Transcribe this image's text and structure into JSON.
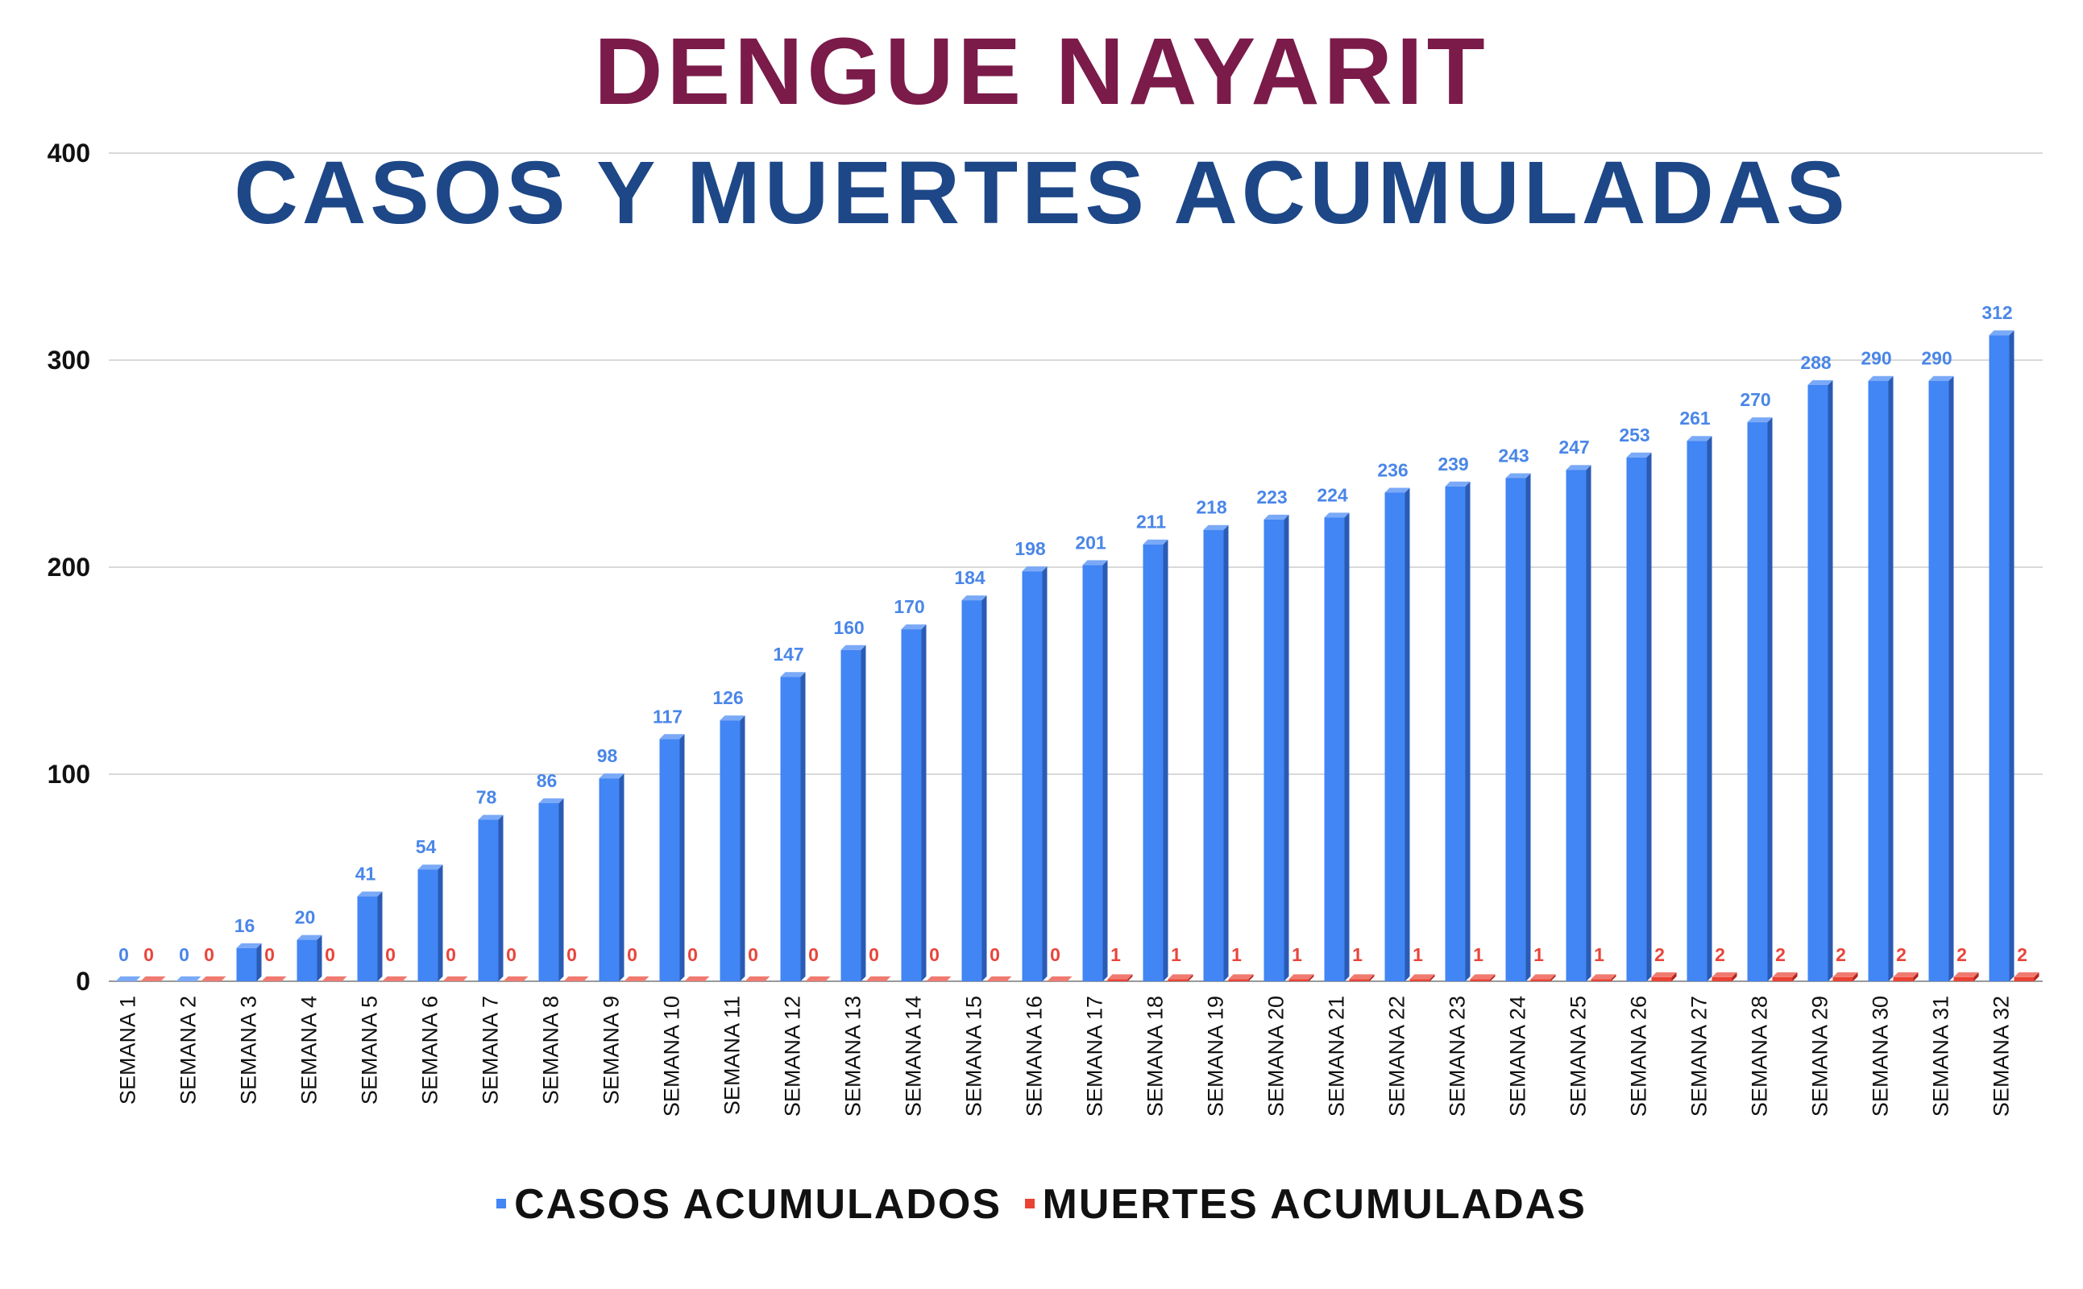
{
  "chart_data": {
    "type": "bar",
    "title": "DENGUE NAYARIT",
    "subtitle": "CASOS Y MUERTES ACUMULADAS",
    "categories": [
      "SEMANA 1",
      "SEMANA 2",
      "SEMANA 3",
      "SEMANA 4",
      "SEMANA 5",
      "SEMANA 6",
      "SEMANA 7",
      "SEMANA 8",
      "SEMANA 9",
      "SEMANA 10",
      "SEMANA 11",
      "SEMANA 12",
      "SEMANA 13",
      "SEMANA 14",
      "SEMANA 15",
      "SEMANA 16",
      "SEMANA 17",
      "SEMANA 18",
      "SEMANA 19",
      "SEMANA 20",
      "SEMANA 21",
      "SEMANA 22",
      "SEMANA 23",
      "SEMANA 24",
      "SEMANA 25",
      "SEMANA 26",
      "SEMANA 27",
      "SEMANA 28",
      "SEMANA 29",
      "SEMANA 30",
      "SEMANA 31",
      "SEMANA 32"
    ],
    "series": [
      {
        "name": "CASOS ACUMULADOS",
        "color": "#4285f4",
        "values": [
          0,
          0,
          16,
          20,
          41,
          54,
          78,
          86,
          98,
          117,
          126,
          147,
          160,
          170,
          184,
          198,
          201,
          211,
          218,
          223,
          224,
          236,
          239,
          243,
          247,
          253,
          261,
          270,
          288,
          290,
          290,
          312
        ]
      },
      {
        "name": "MUERTES ACUMULADAS",
        "color": "#ea4335",
        "values": [
          0,
          0,
          0,
          0,
          0,
          0,
          0,
          0,
          0,
          0,
          0,
          0,
          0,
          0,
          0,
          0,
          1,
          1,
          1,
          1,
          1,
          1,
          1,
          1,
          1,
          2,
          2,
          2,
          2,
          2,
          2,
          2
        ]
      }
    ],
    "ylim": [
      0,
      400
    ],
    "yticks": [
      0,
      100,
      200,
      300,
      400
    ],
    "grid": true,
    "legend": "bottom"
  }
}
